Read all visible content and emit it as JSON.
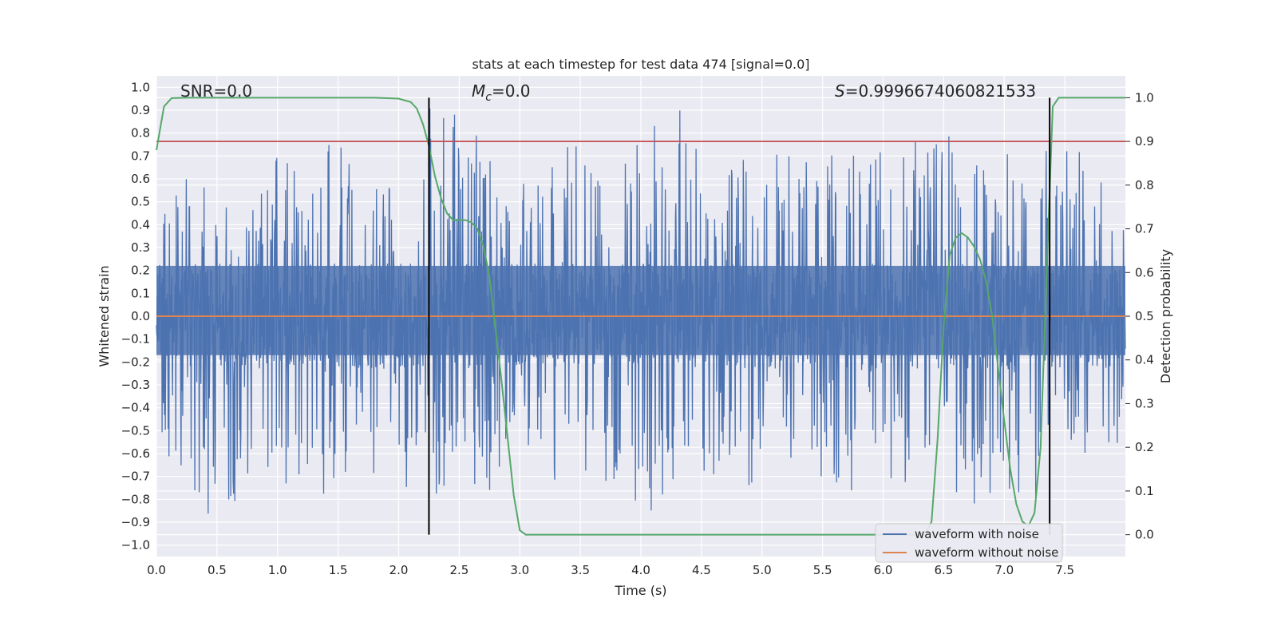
{
  "chart_data": {
    "type": "line",
    "title": "stats at each timestep for test data 474 [signal=0.0]",
    "xlabel": "Time (s)",
    "ylabel": "Whitened strain",
    "y2label": "Detection probability",
    "xlim": [
      0.0,
      8.0
    ],
    "ylim": [
      -1.05,
      1.05
    ],
    "y2lim": [
      -0.05,
      1.05
    ],
    "x_ticks": [
      "0.0",
      "0.5",
      "1.0",
      "1.5",
      "2.0",
      "2.5",
      "3.0",
      "3.5",
      "4.0",
      "4.5",
      "5.0",
      "5.5",
      "6.0",
      "6.5",
      "7.0",
      "7.5"
    ],
    "y_ticks": [
      "1.0",
      "0.9",
      "0.8",
      "0.7",
      "0.6",
      "0.5",
      "0.4",
      "0.3",
      "0.2",
      "0.1",
      "0.0",
      "−0.1",
      "−0.2",
      "−0.3",
      "−0.4",
      "−0.5",
      "−0.6",
      "−0.7",
      "−0.8",
      "−0.9",
      "−1.0"
    ],
    "y2_ticks": [
      "1.0",
      "0.9",
      "0.8",
      "0.7",
      "0.6",
      "0.5",
      "0.4",
      "0.3",
      "0.2",
      "0.1",
      "0.0"
    ],
    "grid": true,
    "legend_position": "lower-right",
    "colors": {
      "noise": "#4c72b0",
      "clean": "#dd8452",
      "probability": "#55a868",
      "threshold": "#c44e52",
      "marker": "#000000",
      "axes_bg": "#eaeaf2",
      "grid": "#ffffff"
    },
    "annotations": {
      "snr": "SNR=0.0",
      "mc_symbol": "M",
      "mc_sub": "c",
      "mc_value": "=0.0",
      "s_symbol": "S",
      "s_value": "=0.9996674060821533"
    },
    "noise_envelope": {
      "x": [
        0.0,
        0.25,
        0.5,
        0.75,
        1.0,
        1.25,
        1.5,
        1.75,
        2.0,
        2.25,
        2.5,
        2.75,
        3.0,
        3.25,
        3.5,
        3.75,
        4.0,
        4.25,
        4.5,
        4.75,
        5.0,
        5.25,
        5.5,
        5.75,
        6.0,
        6.25,
        6.5,
        6.75,
        7.0,
        7.25,
        7.5,
        7.75,
        8.0
      ],
      "upper": [
        0.55,
        0.63,
        0.6,
        0.58,
        0.7,
        0.66,
        0.84,
        0.6,
        0.62,
        0.92,
        0.9,
        0.75,
        0.62,
        0.7,
        0.89,
        0.72,
        0.76,
        1.0,
        0.72,
        0.66,
        0.75,
        0.7,
        0.8,
        0.7,
        0.74,
        0.78,
        0.8,
        0.75,
        0.72,
        0.79,
        0.76,
        0.68,
        0.55
      ],
      "lower": [
        -0.55,
        -0.85,
        -0.95,
        -0.78,
        -0.7,
        -0.81,
        -0.76,
        -0.72,
        -0.8,
        -0.83,
        -0.75,
        -0.78,
        -0.65,
        -0.82,
        -0.72,
        -0.78,
        -0.93,
        -0.72,
        -0.77,
        -0.7,
        -0.8,
        -0.75,
        -0.79,
        -0.8,
        -0.72,
        -0.75,
        -0.89,
        -0.85,
        -0.75,
        -0.82,
        -0.7,
        -0.7,
        -0.55
      ]
    },
    "series": [
      {
        "name": "waveform with noise",
        "axis": "left"
      },
      {
        "name": "waveform without noise",
        "axis": "left",
        "x": [
          0.0,
          8.0
        ],
        "y": [
          0.0,
          0.0
        ]
      },
      {
        "axis": "right",
        "x": [
          0.0,
          0.0625,
          0.125,
          0.25,
          0.5,
          1.0,
          1.5,
          1.8,
          2.0,
          2.1,
          2.15,
          2.2,
          2.25,
          2.3,
          2.35,
          2.4,
          2.45,
          2.5,
          2.55,
          2.6,
          2.65,
          2.7,
          2.75,
          2.8,
          2.85,
          2.9,
          2.95,
          3.0,
          3.05,
          3.1,
          3.2,
          3.5,
          4.0,
          5.0,
          6.0,
          6.3,
          6.35,
          6.4,
          6.45,
          6.5,
          6.55,
          6.6,
          6.65,
          6.7,
          6.75,
          6.8,
          6.85,
          6.9,
          6.95,
          7.0,
          7.05,
          7.1,
          7.15,
          7.2,
          7.25,
          7.3,
          7.35,
          7.4,
          7.45,
          7.5,
          7.6,
          7.75,
          8.0
        ],
        "y": [
          0.88,
          0.98,
          0.999,
          1.0,
          1.0,
          1.0,
          1.0,
          1.0,
          0.998,
          0.99,
          0.975,
          0.94,
          0.89,
          0.82,
          0.77,
          0.735,
          0.72,
          0.72,
          0.72,
          0.715,
          0.7,
          0.66,
          0.59,
          0.47,
          0.35,
          0.22,
          0.09,
          0.01,
          0.0,
          0.0,
          0.0,
          0.0,
          0.0,
          0.0,
          0.0,
          0.0,
          0.005,
          0.03,
          0.22,
          0.48,
          0.64,
          0.68,
          0.69,
          0.68,
          0.66,
          0.63,
          0.58,
          0.5,
          0.38,
          0.26,
          0.15,
          0.07,
          0.03,
          0.02,
          0.05,
          0.2,
          0.6,
          0.98,
          1.0,
          1.0,
          1.0,
          1.0,
          1.0
        ]
      },
      {
        "axis": "right",
        "x": [
          0.0,
          8.0
        ],
        "y": [
          0.9,
          0.9
        ]
      }
    ],
    "vertical_markers": [
      2.25,
      7.375
    ],
    "vertical_marker_range": [
      0.0,
      1.0
    ]
  }
}
